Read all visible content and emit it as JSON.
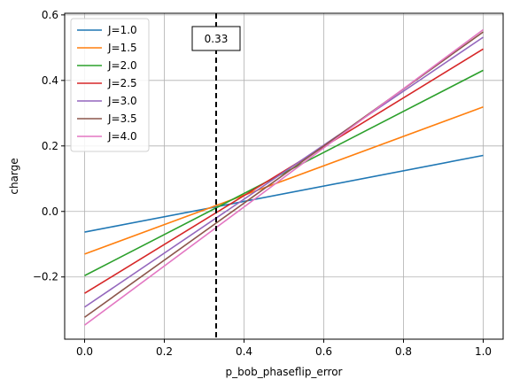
{
  "chart_data": {
    "type": "line",
    "title": "",
    "xlabel": "p_bob_phaseflip_error",
    "ylabel": "charge",
    "xlim": [
      -0.05,
      1.05
    ],
    "ylim": [
      -0.39,
      0.605
    ],
    "xticks": [
      0.0,
      0.2,
      0.4,
      0.6,
      0.8,
      1.0
    ],
    "xtick_labels": [
      "0.0",
      "0.2",
      "0.4",
      "0.6",
      "0.8",
      "1.0"
    ],
    "yticks": [
      -0.2,
      0.0,
      0.2,
      0.4,
      0.6
    ],
    "ytick_labels": [
      "−0.2",
      "0.0",
      "0.2",
      "0.4",
      "0.6"
    ],
    "grid": true,
    "legend_position": "upper-left",
    "series": [
      {
        "name": "J=1.0",
        "color": "#1f77b4",
        "x": [
          0.0,
          1.0
        ],
        "y": [
          -0.063,
          0.171
        ]
      },
      {
        "name": "J=1.5",
        "color": "#ff7f0e",
        "x": [
          0.0,
          1.0
        ],
        "y": [
          -0.13,
          0.319
        ]
      },
      {
        "name": "J=2.0",
        "color": "#2ca02c",
        "x": [
          0.0,
          1.0
        ],
        "y": [
          -0.196,
          0.431
        ]
      },
      {
        "name": "J=2.5",
        "color": "#d62728",
        "x": [
          0.0,
          1.0
        ],
        "y": [
          -0.25,
          0.496
        ]
      },
      {
        "name": "J=3.0",
        "color": "#9467bd",
        "x": [
          0.0,
          1.0
        ],
        "y": [
          -0.292,
          0.532
        ]
      },
      {
        "name": "J=3.5",
        "color": "#8c564b",
        "x": [
          0.0,
          1.0
        ],
        "y": [
          -0.323,
          0.548
        ]
      },
      {
        "name": "J=4.0",
        "color": "#e377c2",
        "x": [
          0.0,
          1.0
        ],
        "y": [
          -0.347,
          0.555
        ]
      }
    ],
    "vline": {
      "x": 0.33,
      "style": "dashed",
      "color": "#000000"
    },
    "annotation": {
      "text": "0.33",
      "x": 0.33
    }
  }
}
